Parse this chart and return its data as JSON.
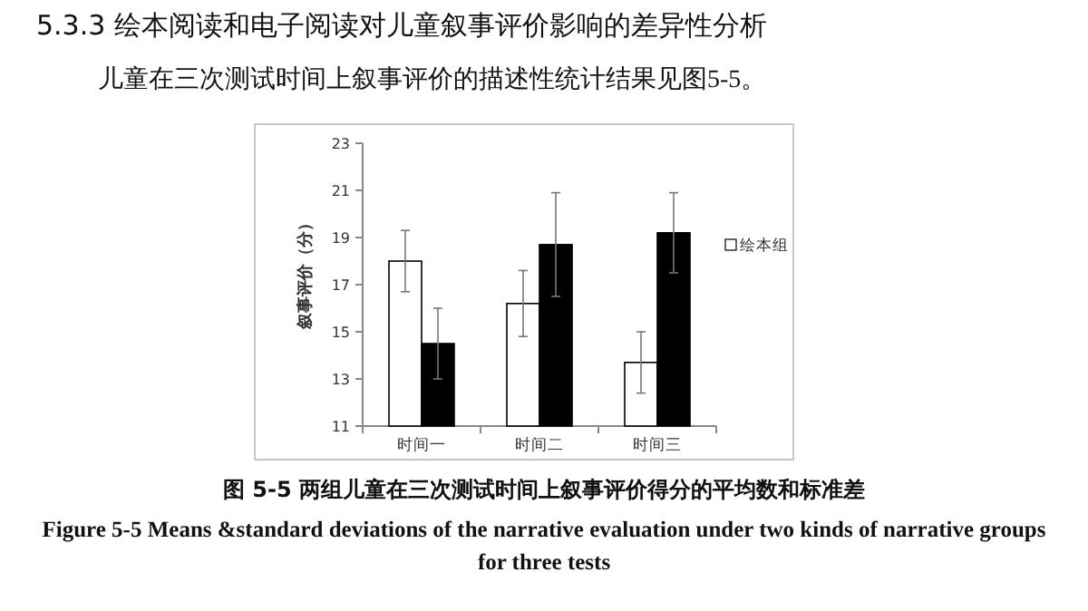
{
  "chart_data": {
    "type": "bar",
    "title": "5.3.3 绘本阅读和电子阅读对儿童叙事评价影响的差异性分析",
    "subtitle": "儿童在三次测试时间上叙事评价的描述性统计结果见图5-5。",
    "ylabel": "叙事评价（分）",
    "annotations": [
      "图 5-5 两组儿童在三次测试时间上叙事评价得分的平均数和标准差",
      "Figure 5-5 Means &standard deviations of the narrative evaluation under two kinds of narrative groups for three tests"
    ],
    "categories": [
      "时间一",
      "时间二",
      "时间三"
    ],
    "series": [
      {
        "name": "绘本组",
        "color": "#ffffff",
        "values": [
          18.0,
          16.2,
          13.7
        ],
        "errors": [
          1.3,
          1.4,
          1.3
        ]
      },
      {
        "color": "#000000",
        "values": [
          14.5,
          18.7,
          19.2
        ],
        "errors": [
          1.5,
          2.2,
          1.7
        ]
      }
    ],
    "ylim": [
      11,
      23
    ],
    "yticks": [
      11,
      13,
      15,
      17,
      19,
      21,
      23
    ],
    "legend": "right",
    "grid": false
  }
}
